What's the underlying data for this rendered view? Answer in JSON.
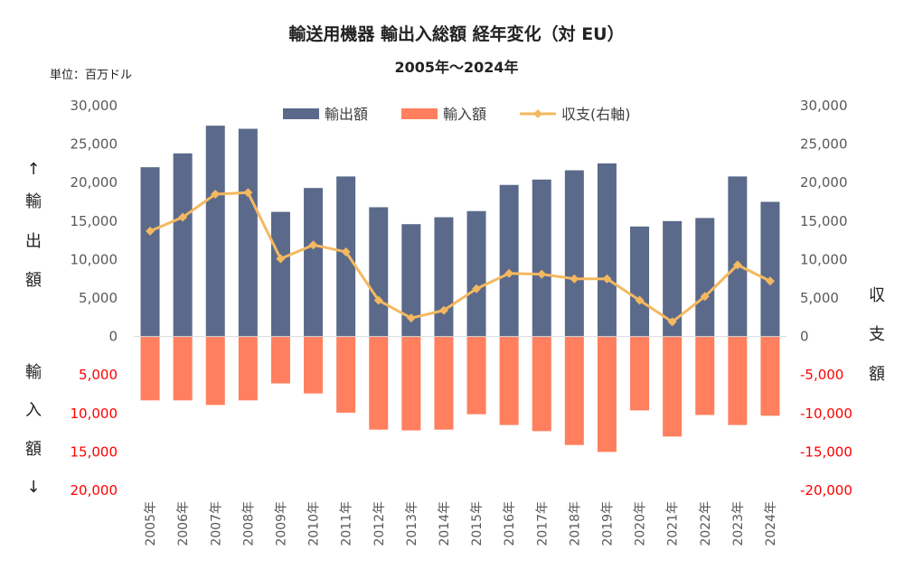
{
  "chart_data": {
    "type": "bar",
    "title": "輸送用機器 輸出入総額 経年変化（対 EU）",
    "subtitle": "2005年～2024年",
    "unit_label": "単位：百万ドル",
    "categories": [
      "2005年",
      "2006年",
      "2007年",
      "2008年",
      "2009年",
      "2010年",
      "2011年",
      "2012年",
      "2013年",
      "2014年",
      "2015年",
      "2016年",
      "2017年",
      "2018年",
      "2019年",
      "2020年",
      "2021年",
      "2022年",
      "2023年",
      "2024年"
    ],
    "series": [
      {
        "name": "輸出額",
        "type": "bar",
        "color": "#5b6a8a",
        "values": [
          22000,
          23800,
          27400,
          27000,
          16200,
          19300,
          20800,
          16800,
          14600,
          15500,
          16300,
          19700,
          20400,
          21600,
          22500,
          14300,
          15000,
          15400,
          20800,
          17500
        ]
      },
      {
        "name": "輸入額",
        "type": "bar",
        "color": "#ff7f5e",
        "values": [
          8300,
          8300,
          8900,
          8300,
          6100,
          7400,
          9900,
          12100,
          12200,
          12100,
          10100,
          11500,
          12300,
          14100,
          15000,
          9600,
          13000,
          10200,
          11500,
          10300
        ]
      },
      {
        "name": "収支(右軸)",
        "type": "line",
        "axis": "right",
        "color": "#f4b860",
        "values": [
          13700,
          15500,
          18500,
          18700,
          10100,
          11900,
          11000,
          4700,
          2400,
          3400,
          6200,
          8200,
          8100,
          7500,
          7500,
          4700,
          1900,
          5200,
          9300,
          7200
        ]
      }
    ],
    "left_axis": {
      "range": [
        -20000,
        30000
      ],
      "ticks_positive": [
        "30,000",
        "25,000",
        "20,000",
        "15,000",
        "10,000",
        "5,000",
        "0"
      ],
      "ticks_negative": [
        "5,000",
        "10,000",
        "15,000",
        "20,000"
      ],
      "label_top": [
        "↑",
        "輸",
        "出",
        "額"
      ],
      "label_bottom": [
        "輸",
        "入",
        "額",
        "↓"
      ]
    },
    "right_axis": {
      "range": [
        -20000,
        30000
      ],
      "ticks_positive": [
        "30,000",
        "25,000",
        "20,000",
        "15,000",
        "10,000",
        "5,000",
        "0"
      ],
      "ticks_negative": [
        "-5,000",
        "-10,000",
        "-15,000",
        "-20,000"
      ],
      "label": [
        "収",
        "支",
        "額"
      ]
    },
    "legend_position": "top-center",
    "grid": false
  }
}
